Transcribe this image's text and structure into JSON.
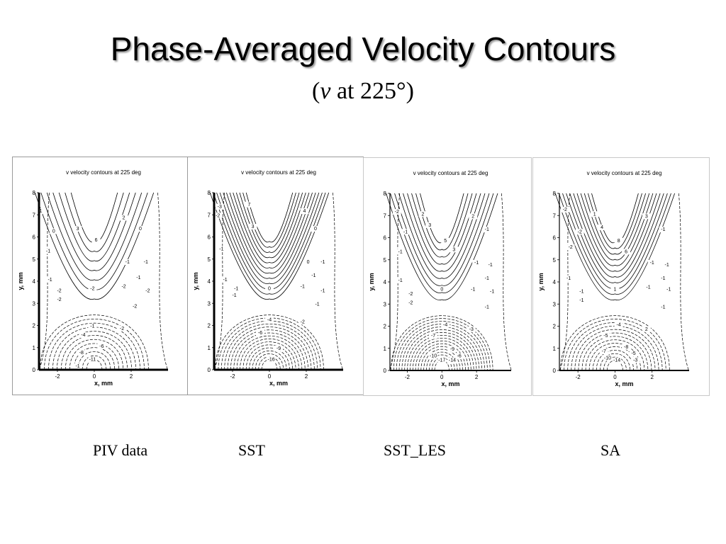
{
  "slide": {
    "title": "Phase-Averaged Velocity Contours",
    "subtitle_prefix": "(",
    "subtitle_var": "v",
    "subtitle_rest": " at 225°)"
  },
  "captions": [
    "PIV data",
    "SST",
    "SST_LES",
    "SA"
  ],
  "chart_data": [
    {
      "type": "contour",
      "title": "v velocity contours at 225 deg",
      "xlabel": "x, mm",
      "ylabel": "y, mm",
      "xlim": [
        -3,
        4
      ],
      "ylim": [
        0,
        8
      ],
      "xticks": [
        -2,
        0,
        2
      ],
      "yticks": [
        0,
        1,
        2,
        3,
        4,
        5,
        6,
        7,
        8
      ],
      "solid_levels": [
        0,
        1,
        2,
        3,
        4,
        5,
        6
      ],
      "dashed_levels": [
        -1,
        -2,
        -3,
        -4,
        -5,
        -6,
        -7,
        -8,
        -9,
        -10,
        -11,
        -12
      ],
      "contour_labels": [
        {
          "text": "6",
          "x": 0.1,
          "y": 5.8
        },
        {
          "text": "3",
          "x": -0.9,
          "y": 6.3
        },
        {
          "text": "2",
          "x": 1.6,
          "y": 6.8
        },
        {
          "text": "0",
          "x": 2.5,
          "y": 6.3
        },
        {
          "text": "0",
          "x": -2.2,
          "y": 6.2
        },
        {
          "text": "1",
          "x": -2.9,
          "y": 7.1
        },
        {
          "text": "-1",
          "x": -2.5,
          "y": 5.3
        },
        {
          "text": "-1",
          "x": -2.4,
          "y": 4.0
        },
        {
          "text": "-2",
          "x": -1.9,
          "y": 3.5
        },
        {
          "text": "-2",
          "x": -1.9,
          "y": 3.1
        },
        {
          "text": "-1",
          "x": 1.8,
          "y": 4.8
        },
        {
          "text": "-1",
          "x": 2.8,
          "y": 4.8
        },
        {
          "text": "-1",
          "x": 2.4,
          "y": 4.1
        },
        {
          "text": "-2",
          "x": 1.6,
          "y": 3.7
        },
        {
          "text": "-2",
          "x": 2.9,
          "y": 3.5
        },
        {
          "text": "-2",
          "x": 2.2,
          "y": 2.8
        },
        {
          "text": "-2",
          "x": 1.5,
          "y": 1.8
        },
        {
          "text": "-1",
          "x": -0.1,
          "y": 1.9
        },
        {
          "text": "-2",
          "x": -0.1,
          "y": 3.6
        },
        {
          "text": "-4",
          "x": -0.6,
          "y": 1.5
        },
        {
          "text": "-6",
          "x": 0.4,
          "y": 1.0
        },
        {
          "text": "-8",
          "x": -0.7,
          "y": 0.7
        },
        {
          "text": "-11",
          "x": -0.1,
          "y": 0.4
        },
        {
          "text": "-1",
          "x": -0.9,
          "y": 0.1
        }
      ]
    },
    {
      "type": "contour",
      "title": "v velocity contours at 225 deg",
      "xlabel": "x, mm",
      "ylabel": "y, mm",
      "xlim": [
        -3,
        4
      ],
      "ylim": [
        0,
        8
      ],
      "xticks": [
        -2,
        0,
        2
      ],
      "yticks": [
        0,
        1,
        2,
        3,
        4,
        5,
        6,
        7,
        8
      ],
      "solid_levels": [
        0,
        1,
        2,
        3,
        4,
        5,
        6,
        7,
        8,
        9,
        10,
        11
      ],
      "dashed_levels": [
        -1,
        -2,
        -3,
        -4,
        -5,
        -6,
        -7,
        -8,
        -9,
        -10,
        -11,
        -12,
        -13,
        -14,
        -15,
        -16
      ],
      "contour_labels": [
        {
          "text": "-3",
          "x": -2.7,
          "y": 7.3
        },
        {
          "text": "-2",
          "x": -2.8,
          "y": 6.9
        },
        {
          "text": "7",
          "x": -1.1,
          "y": 7.4
        },
        {
          "text": "3",
          "x": -0.9,
          "y": 6.4
        },
        {
          "text": "4",
          "x": 1.9,
          "y": 7.1
        },
        {
          "text": "0",
          "x": 2.5,
          "y": 6.3
        },
        {
          "text": "-1",
          "x": -2.6,
          "y": 5.4
        },
        {
          "text": "-1",
          "x": -2.4,
          "y": 4.0
        },
        {
          "text": "-1",
          "x": -1.8,
          "y": 3.6
        },
        {
          "text": "-1",
          "x": -1.9,
          "y": 3.3
        },
        {
          "text": "0",
          "x": 2.1,
          "y": 4.8
        },
        {
          "text": "-1",
          "x": 2.9,
          "y": 4.8
        },
        {
          "text": "-1",
          "x": 2.4,
          "y": 4.2
        },
        {
          "text": "-1",
          "x": 1.8,
          "y": 3.7
        },
        {
          "text": "-1",
          "x": 2.9,
          "y": 3.5
        },
        {
          "text": "-1",
          "x": 2.6,
          "y": 2.9
        },
        {
          "text": "-2",
          "x": 1.8,
          "y": 2.1
        },
        {
          "text": "0",
          "x": 0.0,
          "y": 3.6
        },
        {
          "text": "-4",
          "x": 0.0,
          "y": 2.2
        },
        {
          "text": "-6",
          "x": -0.5,
          "y": 1.6
        },
        {
          "text": "-9",
          "x": 0.5,
          "y": 0.9
        },
        {
          "text": "-16",
          "x": 0.1,
          "y": 0.4
        }
      ]
    },
    {
      "type": "contour",
      "title": "v velocity contours at 225 deg",
      "xlabel": "x, mm",
      "ylabel": "y, mm",
      "xlim": [
        -3,
        4
      ],
      "ylim": [
        0,
        8
      ],
      "xticks": [
        -2,
        0,
        2
      ],
      "yticks": [
        0,
        1,
        2,
        3,
        4,
        5,
        6,
        7,
        8
      ],
      "solid_levels": [
        0,
        1,
        2,
        3,
        4,
        5,
        6,
        7,
        8
      ],
      "dashed_levels": [
        -1,
        -2,
        -3,
        -4,
        -5,
        -6,
        -7,
        -8,
        -9,
        -10,
        -11,
        -12,
        -13,
        -14,
        -15,
        -16,
        -17
      ],
      "contour_labels": [
        {
          "text": "-2",
          "x": -2.6,
          "y": 7.1
        },
        {
          "text": "-1",
          "x": -2.1,
          "y": 6.2
        },
        {
          "text": "-1",
          "x": -2.4,
          "y": 5.3
        },
        {
          "text": "-1",
          "x": -2.4,
          "y": 4.0
        },
        {
          "text": "2",
          "x": -1.1,
          "y": 7.0
        },
        {
          "text": "3",
          "x": -0.7,
          "y": 6.5
        },
        {
          "text": "5",
          "x": 0.2,
          "y": 5.8
        },
        {
          "text": "3",
          "x": 0.7,
          "y": 5.4
        },
        {
          "text": "2",
          "x": 1.8,
          "y": 6.9
        },
        {
          "text": "-1",
          "x": 2.6,
          "y": 6.3
        },
        {
          "text": "-1",
          "x": 2.0,
          "y": 4.8
        },
        {
          "text": "-1",
          "x": 2.8,
          "y": 4.7
        },
        {
          "text": "-1",
          "x": 2.6,
          "y": 4.1
        },
        {
          "text": "-1",
          "x": 1.8,
          "y": 3.6
        },
        {
          "text": "-1",
          "x": 2.9,
          "y": 3.5
        },
        {
          "text": "-1",
          "x": 2.6,
          "y": 2.8
        },
        {
          "text": "-2",
          "x": -1.8,
          "y": 3.4
        },
        {
          "text": "-2",
          "x": -1.8,
          "y": 3.0
        },
        {
          "text": "0",
          "x": 0.0,
          "y": 3.6
        },
        {
          "text": "-4",
          "x": 0.2,
          "y": 2.0
        },
        {
          "text": "-7",
          "x": -0.5,
          "y": 1.5
        },
        {
          "text": "-3",
          "x": 1.7,
          "y": 1.8
        },
        {
          "text": "-6",
          "x": 1.0,
          "y": 0.6
        },
        {
          "text": "-9",
          "x": 0.6,
          "y": 0.9
        },
        {
          "text": "-17",
          "x": 0.0,
          "y": 0.4
        },
        {
          "text": "-14",
          "x": 0.6,
          "y": 0.4
        },
        {
          "text": "-10",
          "x": -0.5,
          "y": 0.6
        }
      ]
    },
    {
      "type": "contour",
      "title": "v velocity contours at 225 deg",
      "xlabel": "x, mm",
      "ylabel": "y, mm",
      "xlim": [
        -3,
        4
      ],
      "ylim": [
        0,
        8
      ],
      "xticks": [
        -2,
        0,
        2
      ],
      "yticks": [
        0,
        1,
        2,
        3,
        4,
        5,
        6,
        7,
        8
      ],
      "solid_levels": [
        0,
        1,
        2,
        3,
        4,
        5,
        6,
        7,
        8,
        9,
        10
      ],
      "dashed_levels": [
        -1,
        -2,
        -3,
        -4,
        -5,
        -6,
        -7,
        -8,
        -9,
        -10,
        -11,
        -12,
        -13,
        -14
      ],
      "contour_labels": [
        {
          "text": "-2",
          "x": -2.7,
          "y": 7.2
        },
        {
          "text": "-2",
          "x": -1.9,
          "y": 6.2
        },
        {
          "text": "-2",
          "x": -2.4,
          "y": 5.5
        },
        {
          "text": "-1",
          "x": -2.5,
          "y": 4.1
        },
        {
          "text": "-1",
          "x": -1.8,
          "y": 3.5
        },
        {
          "text": "-1",
          "x": -1.8,
          "y": 3.1
        },
        {
          "text": "1",
          "x": -1.1,
          "y": 7.0
        },
        {
          "text": "4",
          "x": -0.7,
          "y": 6.4
        },
        {
          "text": "8",
          "x": 0.2,
          "y": 5.8
        },
        {
          "text": "6",
          "x": 0.6,
          "y": 5.3
        },
        {
          "text": "3",
          "x": 1.7,
          "y": 6.9
        },
        {
          "text": "-1",
          "x": 2.6,
          "y": 6.3
        },
        {
          "text": "-1",
          "x": 2.0,
          "y": 4.8
        },
        {
          "text": "-1",
          "x": 2.8,
          "y": 4.7
        },
        {
          "text": "-1",
          "x": 2.6,
          "y": 4.1
        },
        {
          "text": "-1",
          "x": 1.8,
          "y": 3.7
        },
        {
          "text": "-1",
          "x": 2.9,
          "y": 3.6
        },
        {
          "text": "-1",
          "x": 2.6,
          "y": 2.8
        },
        {
          "text": "1",
          "x": 0.0,
          "y": 3.6
        },
        {
          "text": "-4",
          "x": 0.2,
          "y": 2.0
        },
        {
          "text": "2",
          "x": 1.7,
          "y": 1.8
        },
        {
          "text": "-5",
          "x": -0.5,
          "y": 1.5
        },
        {
          "text": "-8",
          "x": 0.6,
          "y": 1.0
        },
        {
          "text": "-7",
          "x": -0.6,
          "y": 0.8
        },
        {
          "text": "-10",
          "x": -0.4,
          "y": 0.5
        },
        {
          "text": "-14",
          "x": 0.1,
          "y": 0.4
        },
        {
          "text": "-5",
          "x": 1.0,
          "y": 0.7
        },
        {
          "text": "-3",
          "x": 1.1,
          "y": 0.4
        }
      ]
    }
  ]
}
